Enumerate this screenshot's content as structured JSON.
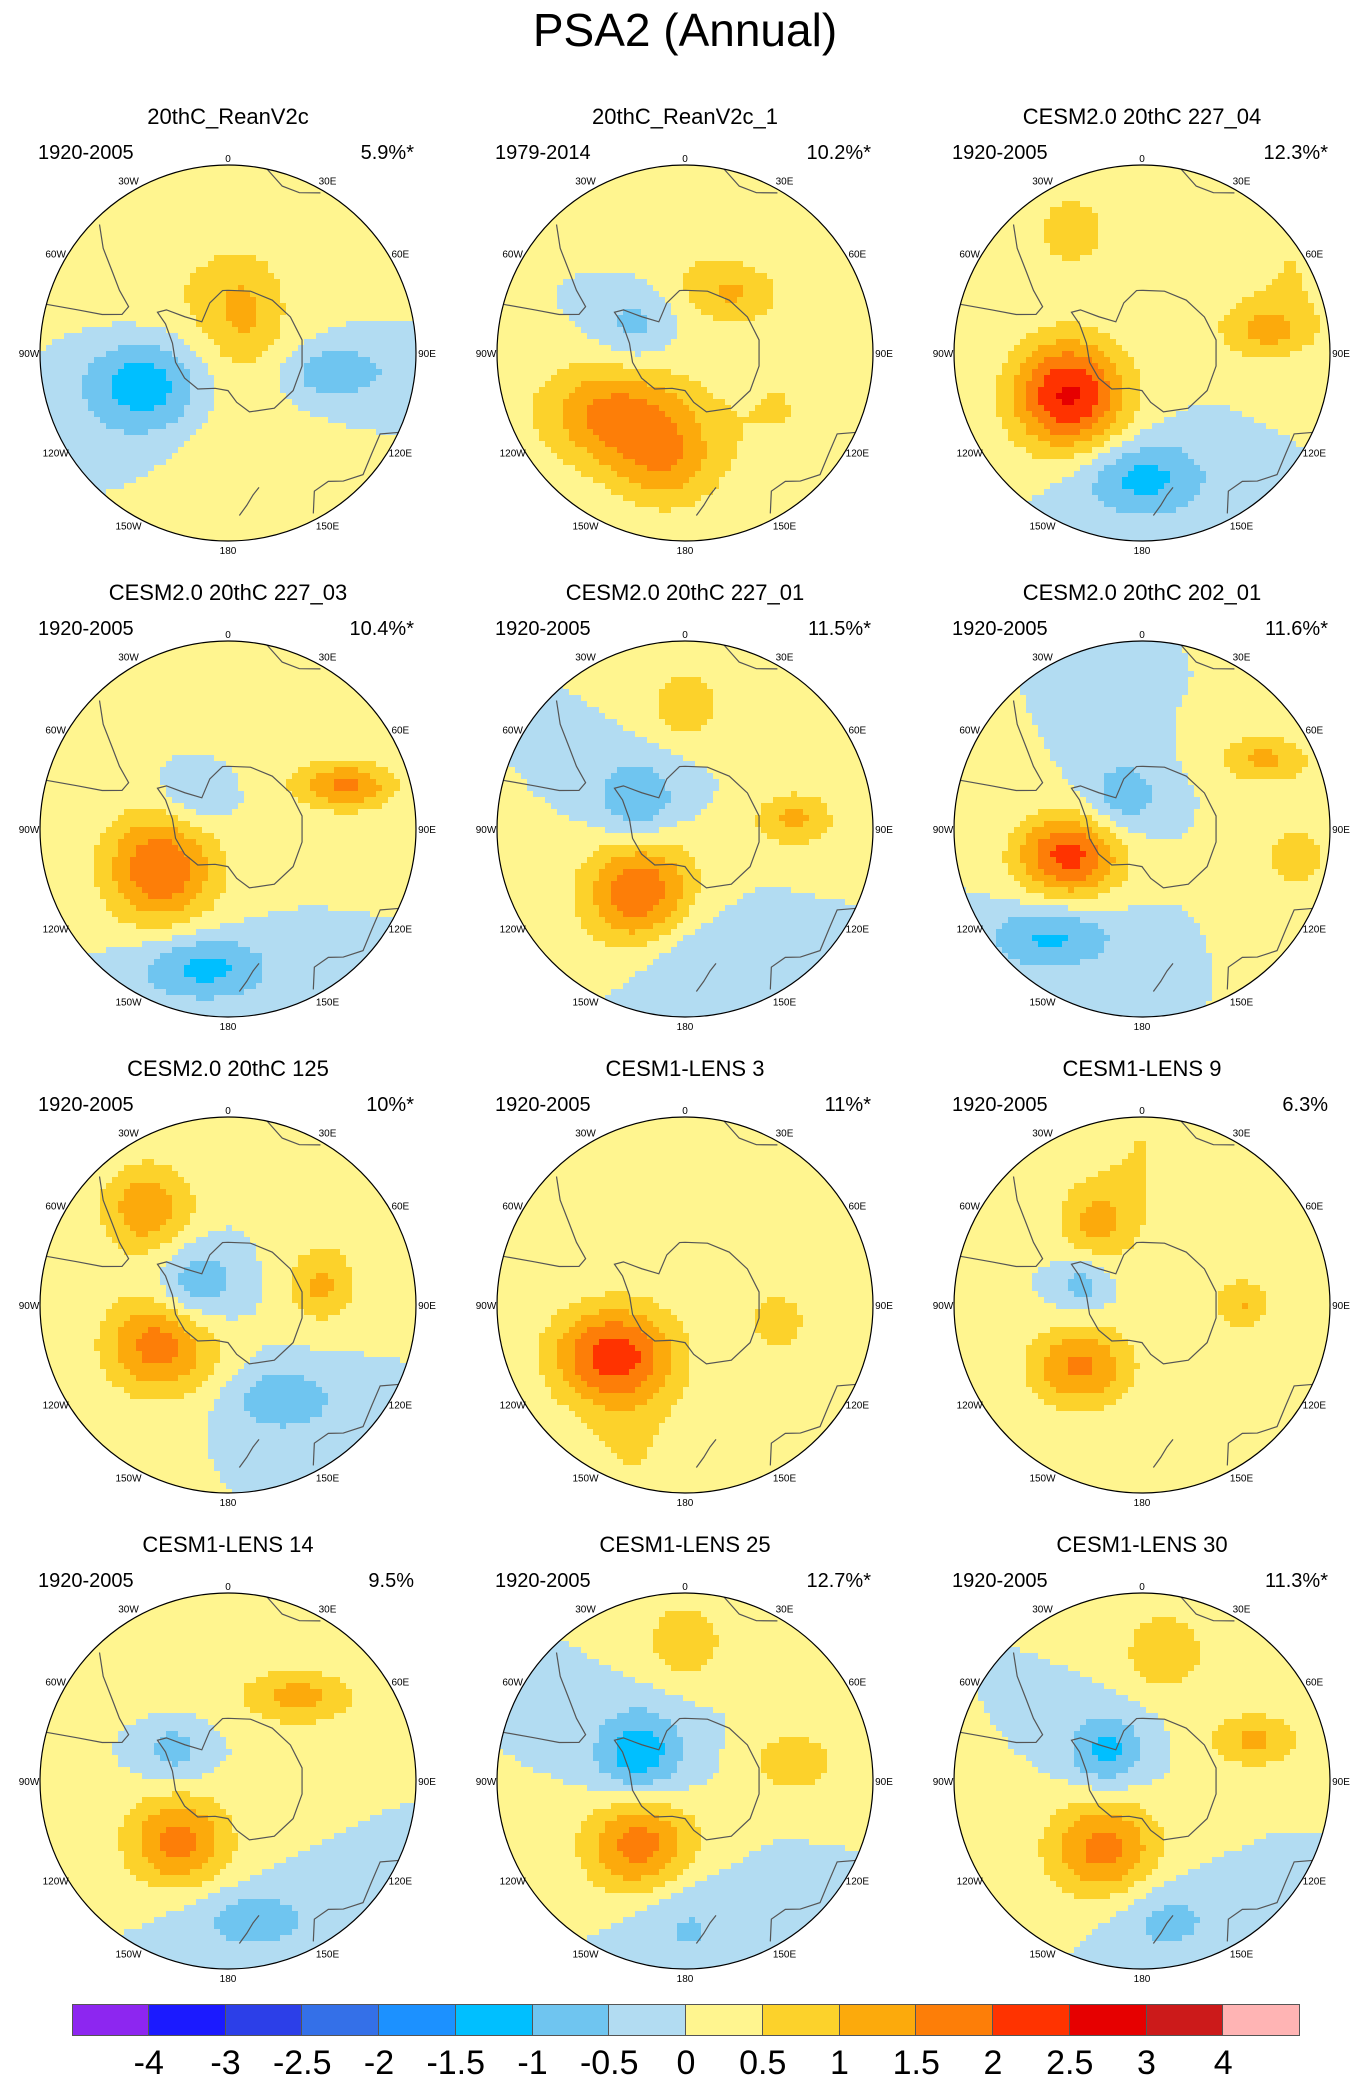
{
  "title": "PSA2 (Annual)",
  "colors": {
    "cb": [
      "#8d26f0",
      "#1b1aff",
      "#2c3fe8",
      "#3470e8",
      "#1c91ff",
      "#00bfff",
      "#6fc5f0",
      "#b2dcf2",
      "#fff58f",
      "#fcd22b",
      "#fcaa0c",
      "#fd7e08",
      "#ff3300",
      "#e60000",
      "#cc1a1a",
      "#ffb4b4"
    ]
  },
  "colorbar": {
    "labels": [
      "-4",
      "-3",
      "-2.5",
      "-2",
      "-1.5",
      "-1",
      "-0.5",
      "0",
      "0.5",
      "1",
      "1.5",
      "2",
      "2.5",
      "3",
      "4"
    ]
  },
  "lon_labels": [
    "0",
    "30E",
    "60E",
    "90E",
    "120E",
    "150E",
    "180",
    "150W",
    "120W",
    "90W",
    "60W",
    "30W"
  ],
  "panels": [
    {
      "title": "20thC_ReanV2c",
      "period": "1920-2005",
      "pct": "5.9%*",
      "blobs": [
        {
          "lon": 300,
          "lat": -70,
          "v": 0.5,
          "r": 0.55,
          "s": 0.9
        },
        {
          "lon": 250,
          "lat": -62,
          "v": -1.6,
          "r": 0.35,
          "s": 0.8
        },
        {
          "lon": 20,
          "lat": -75,
          "v": 0.8,
          "r": 0.22,
          "s": 1.4
        },
        {
          "lon": 100,
          "lat": -55,
          "v": -1,
          "r": 0.28,
          "s": 0.5
        },
        {
          "lon": 180,
          "lat": -50,
          "v": 0.4,
          "r": 0.3,
          "s": 2.0
        }
      ]
    },
    {
      "title": "20thC_ReanV2c_1",
      "period": "1979-2014",
      "pct": "10.2%*",
      "blobs": [
        {
          "lon": 230,
          "lat": -60,
          "v": 1.6,
          "r": 0.4,
          "s": 0.7
        },
        {
          "lon": 190,
          "lat": -55,
          "v": 1.2,
          "r": 0.3,
          "s": 0.9
        },
        {
          "lon": 40,
          "lat": -65,
          "v": 0.9,
          "r": 0.25,
          "s": 0.6
        },
        {
          "lon": 300,
          "lat": -72,
          "v": -0.8,
          "r": 0.22,
          "s": 1
        },
        {
          "lon": 0,
          "lat": -40,
          "v": 0.5,
          "r": 0.35,
          "s": 2
        },
        {
          "lon": 120,
          "lat": -55,
          "v": 0.5,
          "r": 0.3,
          "s": 1.2
        }
      ]
    },
    {
      "title": "CESM2.0 20thC 227_04",
      "period": "1920-2005",
      "pct": "12.3%*",
      "blobs": [
        {
          "lon": 240,
          "lat": -63,
          "v": 2.6,
          "r": 0.3,
          "s": 1
        },
        {
          "lon": 180,
          "lat": -50,
          "v": -1.2,
          "r": 0.35,
          "s": 0.6
        },
        {
          "lon": 80,
          "lat": -50,
          "v": 1.0,
          "r": 0.25,
          "s": 0.6
        },
        {
          "lon": 330,
          "lat": -45,
          "v": 0.8,
          "r": 0.22,
          "s": 1
        },
        {
          "lon": 60,
          "lat": -35,
          "v": 0.5,
          "r": 0.4,
          "s": 1
        }
      ]
    },
    {
      "title": "CESM2.0 20thC 227_03",
      "period": "1920-2005",
      "pct": "10.4%*",
      "blobs": [
        {
          "lon": 240,
          "lat": -65,
          "v": 2.0,
          "r": 0.3,
          "s": 1
        },
        {
          "lon": 70,
          "lat": -50,
          "v": 1.6,
          "r": 0.26,
          "s": 0.5
        },
        {
          "lon": 190,
          "lat": -45,
          "v": -1.2,
          "r": 0.35,
          "s": 0.5
        },
        {
          "lon": 320,
          "lat": -75,
          "v": -0.8,
          "r": 0.2,
          "s": 1
        },
        {
          "lon": 0,
          "lat": -40,
          "v": 0.5,
          "r": 0.4,
          "s": 1.5
        }
      ]
    },
    {
      "title": "CESM2.0 20thC 227_01",
      "period": "1920-2005",
      "pct": "11.5%*",
      "blobs": [
        {
          "lon": 215,
          "lat": -65,
          "v": 2.0,
          "r": 0.3,
          "s": 1
        },
        {
          "lon": 300,
          "lat": -72,
          "v": -1.1,
          "r": 0.22,
          "s": 1
        },
        {
          "lon": 85,
          "lat": -55,
          "v": 1.1,
          "r": 0.22,
          "s": 0.7
        },
        {
          "lon": 0,
          "lat": -50,
          "v": 0.9,
          "r": 0.2,
          "s": 1
        },
        {
          "lon": 180,
          "lat": -50,
          "v": -0.6,
          "r": 0.3,
          "s": 1
        }
      ]
    },
    {
      "title": "CESM2.0 20thC 202_01",
      "period": "1920-2005",
      "pct": "11.6%*",
      "blobs": [
        {
          "lon": 250,
          "lat": -65,
          "v": 2.2,
          "r": 0.28,
          "s": 0.8
        },
        {
          "lon": 60,
          "lat": -45,
          "v": 1.1,
          "r": 0.25,
          "s": 0.5
        },
        {
          "lon": 220,
          "lat": -45,
          "v": -1.1,
          "r": 0.35,
          "s": 0.5
        },
        {
          "lon": 330,
          "lat": -78,
          "v": -0.9,
          "r": 0.2,
          "s": 1
        },
        {
          "lon": 100,
          "lat": -40,
          "v": 0.6,
          "r": 0.3,
          "s": 1
        }
      ]
    },
    {
      "title": "CESM2.0 20thC 125",
      "period": "1920-2005",
      "pct": "10%*",
      "blobs": [
        {
          "lon": 240,
          "lat": -65,
          "v": 1.8,
          "r": 0.3,
          "s": 0.9
        },
        {
          "lon": 320,
          "lat": -50,
          "v": 1.4,
          "r": 0.25,
          "s": 1
        },
        {
          "lon": 300,
          "lat": -78,
          "v": -1.1,
          "r": 0.22,
          "s": 1
        },
        {
          "lon": 150,
          "lat": -55,
          "v": -1.0,
          "r": 0.28,
          "s": 0.6
        },
        {
          "lon": 80,
          "lat": -60,
          "v": 1.0,
          "r": 0.18,
          "s": 1
        },
        {
          "lon": 40,
          "lat": -40,
          "v": 0.5,
          "r": 0.3,
          "s": 1.5
        }
      ]
    },
    {
      "title": "CESM1-LENS 3",
      "period": "1920-2005",
      "pct": "11%*",
      "blobs": [
        {
          "lon": 235,
          "lat": -62,
          "v": 2.2,
          "r": 0.33,
          "s": 0.8
        },
        {
          "lon": 100,
          "lat": -60,
          "v": 1.0,
          "r": 0.15,
          "s": 1
        },
        {
          "lon": 200,
          "lat": -40,
          "v": 0.5,
          "r": 0.3,
          "s": 1.5
        },
        {
          "lon": 350,
          "lat": -30,
          "v": 0.5,
          "r": 0.3,
          "s": 2
        }
      ]
    },
    {
      "title": "CESM1-LENS 9",
      "period": "1920-2005",
      "pct": "6.3%",
      "blobs": [
        {
          "lon": 225,
          "lat": -62,
          "v": 1.6,
          "r": 0.28,
          "s": 0.8
        },
        {
          "lon": 330,
          "lat": -60,
          "v": 1.0,
          "r": 0.2,
          "s": 1
        },
        {
          "lon": 90,
          "lat": -58,
          "v": 1.0,
          "r": 0.15,
          "s": 1
        },
        {
          "lon": 290,
          "lat": -70,
          "v": -0.8,
          "r": 0.15,
          "s": 1
        },
        {
          "lon": 0,
          "lat": -40,
          "v": 0.5,
          "r": 0.4,
          "s": 1.5
        }
      ]
    },
    {
      "title": "CESM1-LENS 14",
      "period": "1920-2005",
      "pct": "9.5%",
      "blobs": [
        {
          "lon": 220,
          "lat": -65,
          "v": 1.7,
          "r": 0.28,
          "s": 0.9
        },
        {
          "lon": 40,
          "lat": -55,
          "v": 1.2,
          "r": 0.3,
          "s": 0.5
        },
        {
          "lon": 300,
          "lat": -70,
          "v": -0.8,
          "r": 0.18,
          "s": 1
        },
        {
          "lon": 170,
          "lat": -45,
          "v": -0.8,
          "r": 0.35,
          "s": 0.5
        },
        {
          "lon": 340,
          "lat": -40,
          "v": 0.5,
          "r": 0.3,
          "s": 1.5
        }
      ]
    },
    {
      "title": "CESM1-LENS 25",
      "period": "1920-2005",
      "pct": "12.7%*",
      "blobs": [
        {
          "lon": 215,
          "lat": -65,
          "v": 1.8,
          "r": 0.3,
          "s": 0.9
        },
        {
          "lon": 300,
          "lat": -73,
          "v": -1.4,
          "r": 0.24,
          "s": 1
        },
        {
          "lon": 80,
          "lat": -55,
          "v": 1.0,
          "r": 0.22,
          "s": 0.7
        },
        {
          "lon": 0,
          "lat": -45,
          "v": 0.9,
          "r": 0.22,
          "s": 1
        },
        {
          "lon": 180,
          "lat": -45,
          "v": -0.6,
          "r": 0.3,
          "s": 1
        }
      ]
    },
    {
      "title": "CESM1-LENS 30",
      "period": "1920-2005",
      "pct": "11.3%*",
      "blobs": [
        {
          "lon": 210,
          "lat": -65,
          "v": 1.7,
          "r": 0.3,
          "s": 0.9
        },
        {
          "lon": 310,
          "lat": -75,
          "v": -1.2,
          "r": 0.2,
          "s": 1
        },
        {
          "lon": 70,
          "lat": -52,
          "v": 1.1,
          "r": 0.25,
          "s": 0.6
        },
        {
          "lon": 10,
          "lat": -48,
          "v": 1.0,
          "r": 0.22,
          "s": 1
        },
        {
          "lon": 170,
          "lat": -45,
          "v": -0.7,
          "r": 0.3,
          "s": 0.7
        }
      ]
    }
  ]
}
